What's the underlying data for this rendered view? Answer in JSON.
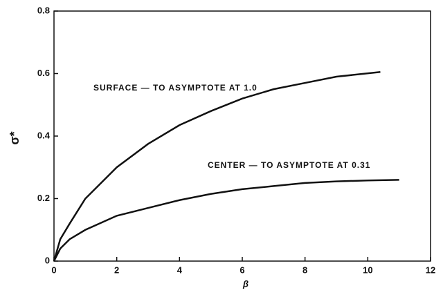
{
  "chart_data": {
    "type": "line",
    "x_label": "β",
    "y_label": "σ*",
    "annotations": [
      "SURFACE — TO ASYMPTOTE AT 1.0",
      "CENTER — TO ASYMPTOTE AT 0.31"
    ],
    "series": [
      {
        "color": "#111111",
        "x": [
          0,
          0.2,
          0.5,
          1,
          2,
          3,
          4,
          5,
          6,
          7,
          8,
          9,
          10.4
        ],
        "values": [
          0,
          0.07,
          0.12,
          0.2,
          0.3,
          0.375,
          0.435,
          0.48,
          0.52,
          0.55,
          0.57,
          0.59,
          0.605
        ]
      },
      {
        "color": "#111111",
        "x": [
          0,
          0.2,
          0.5,
          1,
          2,
          3,
          4,
          5,
          6,
          7,
          8,
          9,
          10,
          11
        ],
        "values": [
          0,
          0.04,
          0.07,
          0.1,
          0.145,
          0.17,
          0.195,
          0.215,
          0.23,
          0.24,
          0.25,
          0.255,
          0.258,
          0.26
        ]
      }
    ],
    "xlim": [
      0,
      12
    ],
    "xticks": [
      0,
      2,
      4,
      6,
      8,
      10,
      12
    ],
    "ylim": [
      0,
      0.8
    ],
    "yticks": [
      0,
      0.2,
      0.4,
      0.6,
      0.8
    ]
  }
}
